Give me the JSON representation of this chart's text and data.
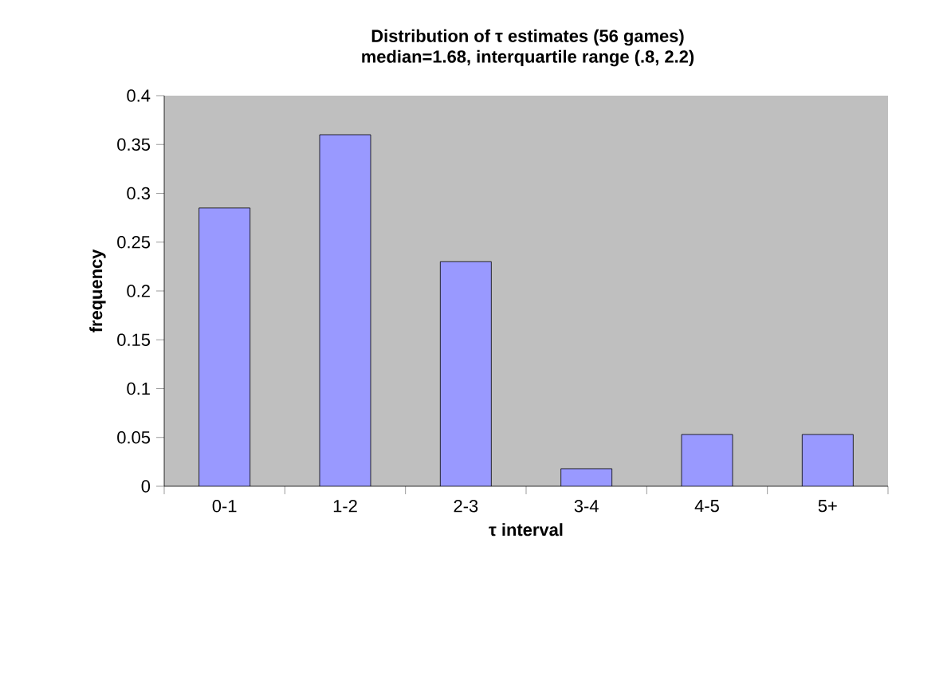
{
  "chart_data": {
    "type": "bar",
    "title": "Distribution of τ estimates (56 games)",
    "subtitle": "median=1.68, interquartile range (.8, 2.2)",
    "xlabel": "τ interval",
    "ylabel": "frequency",
    "categories": [
      "0-1",
      "1-2",
      "2-3",
      "3-4",
      "4-5",
      "5+"
    ],
    "values": [
      0.285,
      0.36,
      0.23,
      0.018,
      0.053,
      0.053
    ],
    "color": "#9999ff",
    "ylim": [
      0,
      0.4
    ],
    "yticks": [
      0,
      0.05,
      0.1,
      0.15,
      0.2,
      0.25,
      0.3,
      0.35,
      0.4
    ],
    "grid": false
  }
}
